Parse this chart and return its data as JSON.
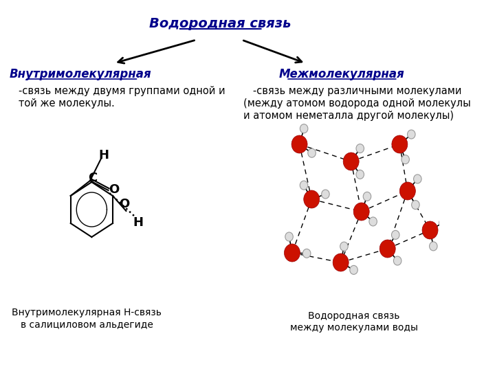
{
  "title": "Водородная связь",
  "left_header": "Внутримолекулярная",
  "left_text1": "-связь между двумя группами одной и",
  "left_text2": "той же молекулы.",
  "right_header": "Межмолекулярная",
  "right_text1": "   -связь между различными молекулами",
  "right_text2": "(между атомом водорода одной молекулы",
  "right_text3": "и атомом неметалла другой молекулы)",
  "left_caption1": "Внутримолекулярная Н-связь",
  "left_caption2": "в салициловом альдегиде",
  "right_caption1": "Водородная связь",
  "right_caption2": "между молекулами воды",
  "title_color": "#00008B",
  "header_color": "#00008B",
  "text_color": "#000000",
  "arrow_color": "#000000",
  "bg_color": "#FFFFFF",
  "title_fontsize": 14,
  "header_fontsize": 12,
  "text_fontsize": 10.5,
  "caption_fontsize": 10
}
